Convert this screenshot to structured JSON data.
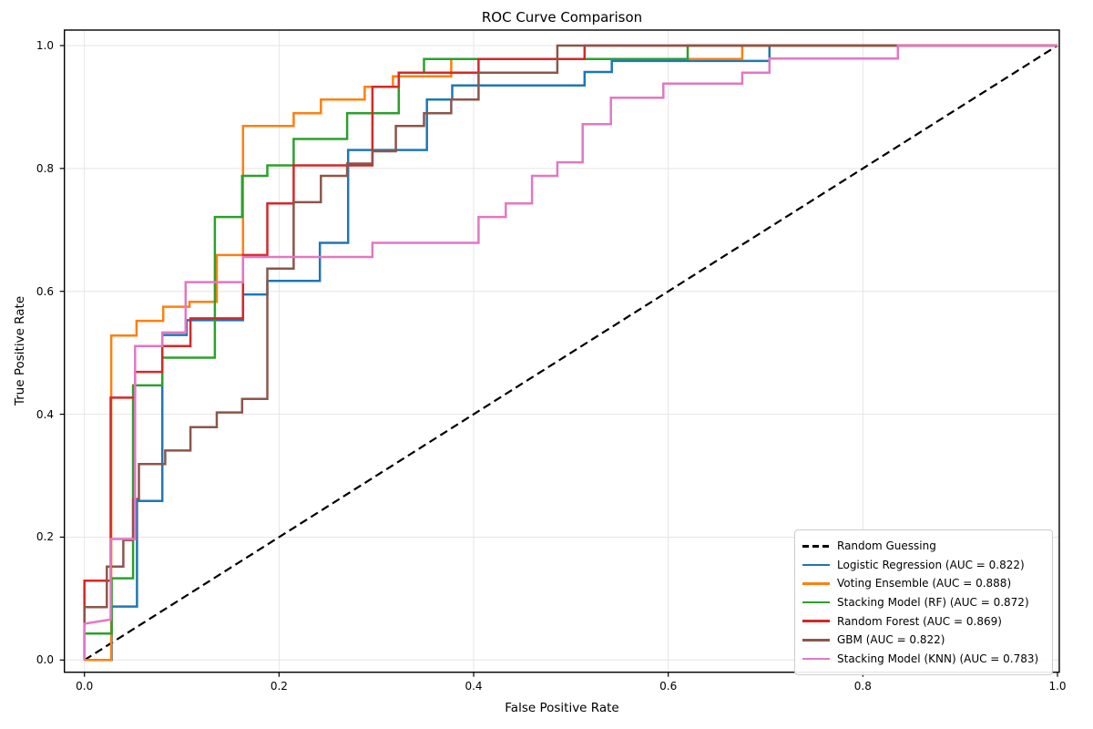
{
  "chart_data": {
    "type": "line",
    "subtype": "roc-step-curves",
    "title": "ROC Curve Comparison",
    "xlabel": "False Positive Rate",
    "ylabel": "True Positive Rate",
    "xlim": [
      -0.02,
      1.02
    ],
    "ylim": [
      -0.02,
      1.02
    ],
    "grid": true,
    "grid_color": "#e5e5e5",
    "legend_position": "lower right",
    "x_ticks": [
      0.0,
      0.2,
      0.4,
      0.6,
      0.8,
      1.0
    ],
    "y_ticks": [
      0.0,
      0.2,
      0.4,
      0.6,
      0.8,
      1.0
    ],
    "series": [
      {
        "name": "Random Guessing",
        "label": "Random Guessing",
        "color": "#000000",
        "dash": true,
        "auc": null,
        "points": [
          [
            0,
            0
          ],
          [
            1,
            1
          ]
        ]
      },
      {
        "name": "Logistic Regression",
        "label": "Logistic Regression (AUC = 0.822)",
        "color": "#1f77b4",
        "dash": false,
        "auc": 0.822,
        "points": [
          [
            0,
            0
          ],
          [
            0.028,
            0
          ],
          [
            0.028,
            0.087
          ],
          [
            0.054,
            0.087
          ],
          [
            0.054,
            0.259
          ],
          [
            0.08,
            0.259
          ],
          [
            0.08,
            0.529
          ],
          [
            0.105,
            0.529
          ],
          [
            0.105,
            0.553
          ],
          [
            0.163,
            0.553
          ],
          [
            0.163,
            0.595
          ],
          [
            0.188,
            0.595
          ],
          [
            0.188,
            0.617
          ],
          [
            0.242,
            0.617
          ],
          [
            0.242,
            0.679
          ],
          [
            0.271,
            0.679
          ],
          [
            0.271,
            0.83
          ],
          [
            0.352,
            0.83
          ],
          [
            0.352,
            0.912
          ],
          [
            0.378,
            0.912
          ],
          [
            0.378,
            0.935
          ],
          [
            0.514,
            0.935
          ],
          [
            0.514,
            0.957
          ],
          [
            0.542,
            0.957
          ],
          [
            0.542,
            0.975
          ],
          [
            0.704,
            0.975
          ],
          [
            0.704,
            1.0
          ],
          [
            1.0,
            1.0
          ]
        ]
      },
      {
        "name": "Voting Ensemble",
        "label": "Voting Ensemble (AUC = 0.888)",
        "color": "#ff7f0e",
        "dash": false,
        "auc": 0.888,
        "points": [
          [
            0,
            0
          ],
          [
            0.0275,
            0
          ],
          [
            0.0275,
            0.528
          ],
          [
            0.0535,
            0.528
          ],
          [
            0.0535,
            0.552
          ],
          [
            0.081,
            0.552
          ],
          [
            0.081,
            0.575
          ],
          [
            0.108,
            0.575
          ],
          [
            0.108,
            0.583
          ],
          [
            0.136,
            0.583
          ],
          [
            0.136,
            0.659
          ],
          [
            0.163,
            0.659
          ],
          [
            0.163,
            0.869
          ],
          [
            0.215,
            0.869
          ],
          [
            0.215,
            0.89
          ],
          [
            0.243,
            0.89
          ],
          [
            0.243,
            0.912
          ],
          [
            0.288,
            0.912
          ],
          [
            0.288,
            0.933
          ],
          [
            0.317,
            0.933
          ],
          [
            0.317,
            0.95
          ],
          [
            0.377,
            0.95
          ],
          [
            0.377,
            0.978
          ],
          [
            0.676,
            0.978
          ],
          [
            0.676,
            1.0
          ],
          [
            1.0,
            1.0
          ]
        ]
      },
      {
        "name": "Stacking Model (RF)",
        "label": "Stacking Model (RF) (AUC = 0.872)",
        "color": "#2ca02c",
        "dash": false,
        "auc": 0.872,
        "points": [
          [
            0,
            0
          ],
          [
            0,
            0.043
          ],
          [
            0.028,
            0.043
          ],
          [
            0.028,
            0.133
          ],
          [
            0.05,
            0.133
          ],
          [
            0.05,
            0.447
          ],
          [
            0.08,
            0.447
          ],
          [
            0.08,
            0.492
          ],
          [
            0.134,
            0.492
          ],
          [
            0.134,
            0.721
          ],
          [
            0.162,
            0.721
          ],
          [
            0.162,
            0.788
          ],
          [
            0.188,
            0.788
          ],
          [
            0.188,
            0.805
          ],
          [
            0.215,
            0.805
          ],
          [
            0.215,
            0.848
          ],
          [
            0.27,
            0.848
          ],
          [
            0.27,
            0.89
          ],
          [
            0.323,
            0.89
          ],
          [
            0.323,
            0.956
          ],
          [
            0.349,
            0.956
          ],
          [
            0.349,
            0.978
          ],
          [
            0.62,
            0.978
          ],
          [
            0.62,
            1.0
          ],
          [
            1.0,
            1.0
          ]
        ]
      },
      {
        "name": "Random Forest",
        "label": "Random Forest (AUC = 0.869)",
        "color": "#d62728",
        "dash": false,
        "auc": 0.869,
        "points": [
          [
            0,
            0
          ],
          [
            0,
            0.129
          ],
          [
            0.027,
            0.129
          ],
          [
            0.027,
            0.427
          ],
          [
            0.052,
            0.427
          ],
          [
            0.052,
            0.469
          ],
          [
            0.08,
            0.469
          ],
          [
            0.08,
            0.511
          ],
          [
            0.109,
            0.511
          ],
          [
            0.109,
            0.556
          ],
          [
            0.163,
            0.556
          ],
          [
            0.163,
            0.659
          ],
          [
            0.188,
            0.659
          ],
          [
            0.188,
            0.743
          ],
          [
            0.215,
            0.743
          ],
          [
            0.215,
            0.805
          ],
          [
            0.296,
            0.805
          ],
          [
            0.296,
            0.933
          ],
          [
            0.323,
            0.933
          ],
          [
            0.323,
            0.956
          ],
          [
            0.405,
            0.956
          ],
          [
            0.405,
            0.978
          ],
          [
            0.514,
            0.978
          ],
          [
            0.514,
            1.0
          ],
          [
            1.0,
            1.0
          ]
        ]
      },
      {
        "name": "GBM",
        "label": "GBM (AUC = 0.822)",
        "color": "#8c564b",
        "dash": false,
        "auc": 0.822,
        "points": [
          [
            0,
            0
          ],
          [
            0,
            0.086
          ],
          [
            0.023,
            0.086
          ],
          [
            0.023,
            0.152
          ],
          [
            0.04,
            0.152
          ],
          [
            0.04,
            0.195
          ],
          [
            0.05,
            0.195
          ],
          [
            0.05,
            0.262
          ],
          [
            0.056,
            0.262
          ],
          [
            0.056,
            0.319
          ],
          [
            0.083,
            0.319
          ],
          [
            0.083,
            0.341
          ],
          [
            0.109,
            0.341
          ],
          [
            0.109,
            0.379
          ],
          [
            0.136,
            0.379
          ],
          [
            0.136,
            0.403
          ],
          [
            0.162,
            0.403
          ],
          [
            0.162,
            0.425
          ],
          [
            0.188,
            0.425
          ],
          [
            0.188,
            0.637
          ],
          [
            0.215,
            0.637
          ],
          [
            0.215,
            0.745
          ],
          [
            0.243,
            0.745
          ],
          [
            0.243,
            0.788
          ],
          [
            0.27,
            0.788
          ],
          [
            0.27,
            0.808
          ],
          [
            0.296,
            0.808
          ],
          [
            0.296,
            0.828
          ],
          [
            0.32,
            0.828
          ],
          [
            0.32,
            0.869
          ],
          [
            0.349,
            0.869
          ],
          [
            0.349,
            0.89
          ],
          [
            0.377,
            0.89
          ],
          [
            0.377,
            0.912
          ],
          [
            0.405,
            0.912
          ],
          [
            0.405,
            0.956
          ],
          [
            0.486,
            0.956
          ],
          [
            0.486,
            1.0
          ],
          [
            1.0,
            1.0
          ]
        ]
      },
      {
        "name": "Stacking Model (KNN)",
        "label": "Stacking Model (KNN) (AUC = 0.783)",
        "color": "#e377c2",
        "dash": false,
        "auc": 0.783,
        "points": [
          [
            0,
            0
          ],
          [
            0,
            0.059
          ],
          [
            0.027,
            0.066
          ],
          [
            0.027,
            0.197
          ],
          [
            0.052,
            0.197
          ],
          [
            0.052,
            0.511
          ],
          [
            0.08,
            0.511
          ],
          [
            0.08,
            0.533
          ],
          [
            0.104,
            0.533
          ],
          [
            0.104,
            0.615
          ],
          [
            0.163,
            0.615
          ],
          [
            0.163,
            0.656
          ],
          [
            0.296,
            0.656
          ],
          [
            0.296,
            0.679
          ],
          [
            0.405,
            0.679
          ],
          [
            0.405,
            0.721
          ],
          [
            0.433,
            0.721
          ],
          [
            0.433,
            0.743
          ],
          [
            0.46,
            0.743
          ],
          [
            0.46,
            0.788
          ],
          [
            0.486,
            0.788
          ],
          [
            0.486,
            0.81
          ],
          [
            0.512,
            0.81
          ],
          [
            0.512,
            0.872
          ],
          [
            0.541,
            0.872
          ],
          [
            0.541,
            0.915
          ],
          [
            0.595,
            0.915
          ],
          [
            0.595,
            0.938
          ],
          [
            0.676,
            0.938
          ],
          [
            0.676,
            0.956
          ],
          [
            0.704,
            0.956
          ],
          [
            0.704,
            0.979
          ],
          [
            0.836,
            0.979
          ],
          [
            0.836,
            1.0
          ],
          [
            1.0,
            1.0
          ]
        ]
      }
    ]
  }
}
